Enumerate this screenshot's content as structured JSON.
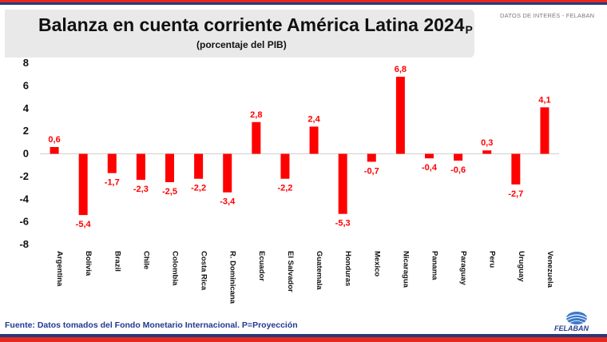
{
  "header": {
    "note": "DATOS DE INTERÉS - FELABAN"
  },
  "chart_data": {
    "type": "bar",
    "title": "Balanza en cuenta corriente América Latina 2024",
    "title_suffix": "P",
    "subtitle": "(porcentaje del PIB)",
    "xlabel": "",
    "ylabel": "",
    "ylim": [
      -8,
      8
    ],
    "yticks": [
      8,
      6,
      4,
      2,
      0,
      -2,
      -4,
      -6,
      -8
    ],
    "grid": false,
    "legend": "none",
    "bar_color": "#ff0000",
    "label_color": "#ff0000",
    "categories": [
      "Argentina",
      "Bolivia",
      "Brazil",
      "Chile",
      "Colombia",
      "Costa Rica",
      "R. Dominicana",
      "Ecuador",
      "El Salvador",
      "Guatemala",
      "Honduras",
      "Mexico",
      "Nicaragua",
      "Panama",
      "Paraguay",
      "Peru",
      "Uruguay",
      "Venezuela"
    ],
    "values": [
      0.6,
      -5.4,
      -1.7,
      -2.3,
      -2.5,
      -2.2,
      -3.4,
      2.8,
      -2.2,
      2.4,
      -5.3,
      -0.7,
      6.8,
      -0.4,
      -0.6,
      0.3,
      -2.7,
      4.1
    ],
    "value_labels": [
      "0,6",
      "-5,4",
      "-1,7",
      "-2,3",
      "-2,5",
      "-2,2",
      "-3,4",
      "2,8",
      "-2,2",
      "2,4",
      "-5,3",
      "-0,7",
      "6,8",
      "-0,4",
      "-0,6",
      "0,3",
      "-2,7",
      "4,1"
    ]
  },
  "footer": {
    "source": "Fuente: Datos tomados del Fondo Monetario Internacional. P=Proyección",
    "logo_text": "FELABAN"
  },
  "colors": {
    "accent_red": "#e5281e",
    "brand_navy": "#253a7c",
    "source_text": "#1f3a93"
  }
}
